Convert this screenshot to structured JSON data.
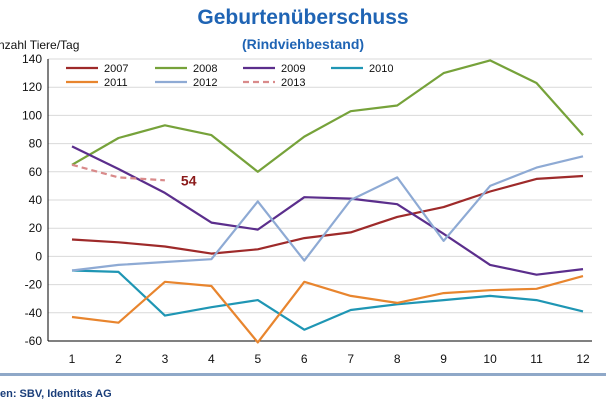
{
  "colors": {
    "title": "#1f64b4",
    "gridline": "#d9d9d9",
    "axis": "#000000",
    "annotation": "#8b1a1a"
  },
  "chart_data": {
    "type": "line",
    "title": "Geburtenüberschuss",
    "subtitle": "(Rindviehbestand)",
    "ylabel": "nzahl Tiere/Tag",
    "xlabel": "",
    "x": [
      1,
      2,
      3,
      4,
      5,
      6,
      7,
      8,
      9,
      10,
      11,
      12
    ],
    "x_tick_labels": [
      "1",
      "2",
      "3",
      "4",
      "5",
      "6",
      "7",
      "8",
      "9",
      "10",
      "11",
      "12"
    ],
    "ylim": [
      -60,
      140
    ],
    "y_ticks": [
      -60,
      -40,
      -20,
      0,
      20,
      40,
      60,
      80,
      100,
      120,
      140
    ],
    "y_tick_labels": [
      "-60",
      "-40",
      "-20",
      "0",
      "20",
      "40",
      "60",
      "80",
      "100",
      "120",
      "140"
    ],
    "grid": true,
    "legend_position": "top",
    "series": [
      {
        "name": "2007",
        "color": "#9e2a2a",
        "dash": "solid",
        "values": [
          12,
          10,
          7,
          2,
          5,
          13,
          17,
          28,
          35,
          46,
          55,
          57
        ]
      },
      {
        "name": "2008",
        "color": "#76a23a",
        "dash": "solid",
        "values": [
          65,
          84,
          93,
          86,
          60,
          85,
          103,
          107,
          130,
          139,
          123,
          86
        ]
      },
      {
        "name": "2009",
        "color": "#5b2e8c",
        "dash": "solid",
        "values": [
          78,
          62,
          45,
          24,
          19,
          42,
          41,
          37,
          16,
          -6,
          -13,
          -9
        ]
      },
      {
        "name": "2010",
        "color": "#1f96b4",
        "dash": "solid",
        "values": [
          -10,
          -11,
          -42,
          -36,
          -31,
          -52,
          -38,
          -34,
          -31,
          -28,
          -31,
          -39
        ]
      },
      {
        "name": "2011",
        "color": "#e8852e",
        "dash": "solid",
        "values": [
          -43,
          -47,
          -18,
          -21,
          -61,
          -18,
          -28,
          -33,
          -26,
          -24,
          -23,
          -14
        ]
      },
      {
        "name": "2012",
        "color": "#8eaad4",
        "dash": "solid",
        "values": [
          -10,
          -6,
          -4,
          -2,
          39,
          -3,
          40,
          56,
          11,
          50,
          63,
          71
        ]
      },
      {
        "name": "2013",
        "color": "#d98a8a",
        "dash": "dashed",
        "values": [
          65,
          56,
          54,
          null,
          null,
          null,
          null,
          null,
          null,
          null,
          null,
          null
        ]
      }
    ],
    "annotations": [
      {
        "text": "54",
        "x": 3,
        "y": 54
      }
    ]
  },
  "source_text": "en: SBV, Identitas AG"
}
